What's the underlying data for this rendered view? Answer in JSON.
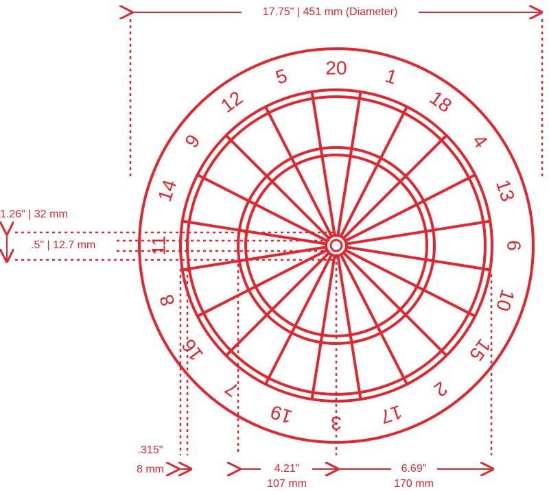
{
  "measurements": {
    "diameter": "17.75\" | 451 mm (Diameter)",
    "double_outer": "1.26\" | 32 mm",
    "bull_half": ".5\" | 12.7 mm",
    "double_width_in": ".315\"",
    "double_width_mm": "8 mm",
    "inner_in": "4.21\"",
    "inner_mm": "107 mm",
    "outer_in": "6.69\"",
    "outer_mm": "170 mm"
  },
  "numbers": [
    "20",
    "1",
    "18",
    "4",
    "13",
    "6",
    "10",
    "15",
    "2",
    "17",
    "3",
    "19",
    "7",
    "16",
    "8",
    "11",
    "14",
    "9",
    "12",
    "5"
  ],
  "colors": {
    "line": "#e3262d",
    "background": "#ffffff"
  }
}
